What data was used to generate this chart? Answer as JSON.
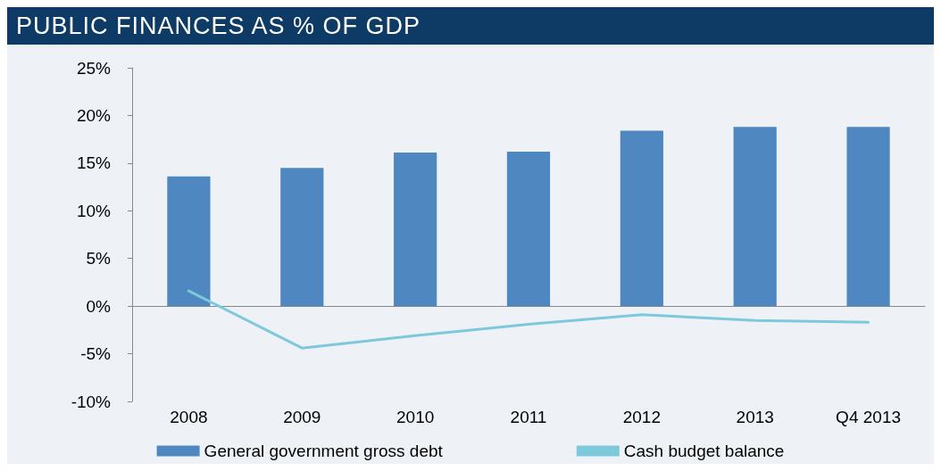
{
  "chart_data": {
    "type": "bar",
    "title": "PUBLIC FINANCES AS % OF GDP",
    "categories": [
      "2008",
      "2009",
      "2010",
      "2011",
      "2012",
      "2013",
      "Q4 2013"
    ],
    "series": [
      {
        "name": "General government gross debt",
        "color": "#4f88c0",
        "values": [
          13.6,
          14.5,
          16.1,
          16.2,
          18.4,
          18.8,
          18.8
        ]
      },
      {
        "name": "Cash budget balance",
        "type": "line",
        "color": "#7ec8dc",
        "values": [
          1.6,
          -4.4,
          -3.1,
          -1.9,
          -0.9,
          -1.5,
          -1.7
        ]
      }
    ],
    "ylim": [
      -10,
      25
    ],
    "yticks": [
      {
        "value": -10,
        "label": "-10%"
      },
      {
        "value": -5,
        "label": "-5%"
      },
      {
        "value": 0,
        "label": "0%"
      },
      {
        "value": 5,
        "label": "5%"
      },
      {
        "value": 10,
        "label": "10%"
      },
      {
        "value": 15,
        "label": "15%"
      },
      {
        "value": 20,
        "label": "20%"
      },
      {
        "value": 25,
        "label": "25%"
      }
    ],
    "legend": "bottom",
    "marker": "none",
    "line_style": "solid"
  }
}
